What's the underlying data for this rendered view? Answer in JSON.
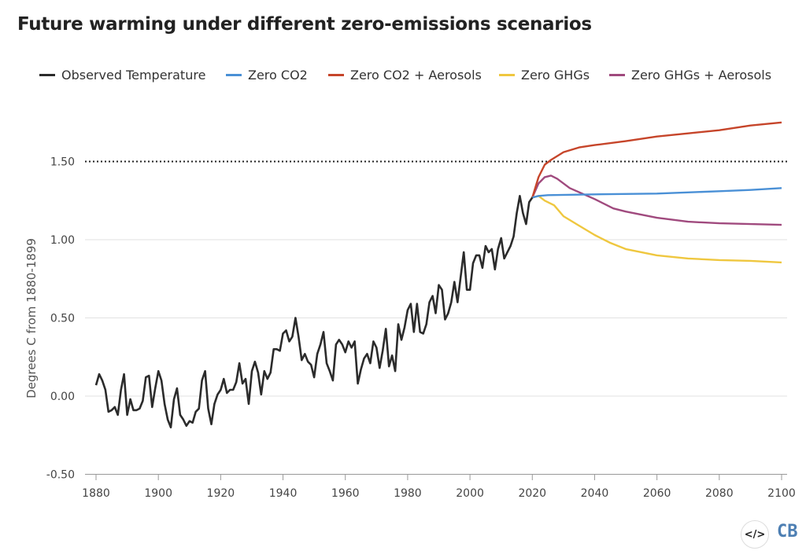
{
  "chart_data": {
    "type": "line",
    "title": "Future warming under different zero-emissions scenarios",
    "ylabel": "Degrees C from 1880-1899",
    "xlabel": "",
    "xlim": [
      1880,
      2100
    ],
    "ylim": [
      -0.5,
      1.75
    ],
    "x_ticks": [
      "1880",
      "1900",
      "1920",
      "1940",
      "1960",
      "1980",
      "2000",
      "2020",
      "2040",
      "2060",
      "2080",
      "2100"
    ],
    "y_ticks": [
      "-0.50",
      "0.00",
      "0.50",
      "1.00",
      "1.50"
    ],
    "grid": "horizontal",
    "legend_placement": "top",
    "reference_line": {
      "y": 1.5,
      "style": "dotted",
      "color": "#222222"
    },
    "series": [
      {
        "name": "Observed Temperature",
        "color": "#2b2b2b",
        "start_year": 1880,
        "values": [
          0.07,
          0.14,
          0.1,
          0.04,
          -0.1,
          -0.09,
          -0.07,
          -0.12,
          0.04,
          0.14,
          -0.12,
          -0.02,
          -0.09,
          -0.09,
          -0.08,
          -0.03,
          0.12,
          0.13,
          -0.07,
          0.05,
          0.16,
          0.1,
          -0.05,
          -0.15,
          -0.2,
          -0.02,
          0.05,
          -0.12,
          -0.15,
          -0.19,
          -0.16,
          -0.17,
          -0.1,
          -0.08,
          0.1,
          0.16,
          -0.08,
          -0.18,
          -0.05,
          0.01,
          0.04,
          0.11,
          0.02,
          0.04,
          0.04,
          0.09,
          0.21,
          0.08,
          0.11,
          -0.05,
          0.16,
          0.22,
          0.15,
          0.01,
          0.16,
          0.11,
          0.15,
          0.3,
          0.3,
          0.29,
          0.4,
          0.42,
          0.35,
          0.38,
          0.5,
          0.38,
          0.23,
          0.27,
          0.22,
          0.2,
          0.12,
          0.27,
          0.33,
          0.41,
          0.21,
          0.16,
          0.1,
          0.33,
          0.36,
          0.33,
          0.28,
          0.35,
          0.31,
          0.35,
          0.08,
          0.17,
          0.24,
          0.27,
          0.21,
          0.35,
          0.31,
          0.18,
          0.29,
          0.43,
          0.19,
          0.26,
          0.16,
          0.46,
          0.36,
          0.44,
          0.55,
          0.59,
          0.41,
          0.59,
          0.41,
          0.4,
          0.46,
          0.6,
          0.64,
          0.53,
          0.71,
          0.68,
          0.49,
          0.53,
          0.6,
          0.73,
          0.6,
          0.76,
          0.92,
          0.68,
          0.68,
          0.85,
          0.9,
          0.9,
          0.82,
          0.96,
          0.92,
          0.94,
          0.81,
          0.94,
          1.01,
          0.88,
          0.92,
          0.96,
          1.02,
          1.17,
          1.28,
          1.17,
          1.1,
          1.24,
          1.27
        ]
      },
      {
        "name": "Zero CO2",
        "color": "#4a90d6",
        "x": [
          2020,
          2022,
          2025,
          2040,
          2060,
          2080,
          2090,
          2100
        ],
        "values": [
          1.27,
          1.28,
          1.285,
          1.29,
          1.295,
          1.31,
          1.318,
          1.33
        ]
      },
      {
        "name": "Zero CO2 + Aerosols",
        "color": "#c6452a",
        "x": [
          2020,
          2022,
          2024,
          2026,
          2030,
          2035,
          2040,
          2050,
          2060,
          2070,
          2080,
          2090,
          2100
        ],
        "values": [
          1.27,
          1.4,
          1.48,
          1.51,
          1.56,
          1.59,
          1.605,
          1.63,
          1.66,
          1.68,
          1.7,
          1.73,
          1.75
        ]
      },
      {
        "name": "Zero GHGs",
        "color": "#efc73f",
        "x": [
          2020,
          2022,
          2024,
          2027,
          2030,
          2035,
          2040,
          2045,
          2050,
          2060,
          2070,
          2080,
          2090,
          2100
        ],
        "values": [
          1.27,
          1.28,
          1.25,
          1.22,
          1.15,
          1.09,
          1.03,
          0.98,
          0.94,
          0.9,
          0.88,
          0.87,
          0.865,
          0.855
        ]
      },
      {
        "name": "Zero GHGs + Aerosols",
        "color": "#a04a7e",
        "x": [
          2020,
          2022,
          2024,
          2026,
          2028,
          2032,
          2040,
          2046,
          2050,
          2060,
          2070,
          2080,
          2090,
          2100
        ],
        "values": [
          1.27,
          1.36,
          1.4,
          1.41,
          1.39,
          1.33,
          1.26,
          1.2,
          1.18,
          1.14,
          1.115,
          1.105,
          1.1,
          1.095
        ]
      }
    ]
  },
  "logo": {
    "embed_icon": "code-embed-icon",
    "embed_glyph": "</>",
    "brand": "CB"
  }
}
